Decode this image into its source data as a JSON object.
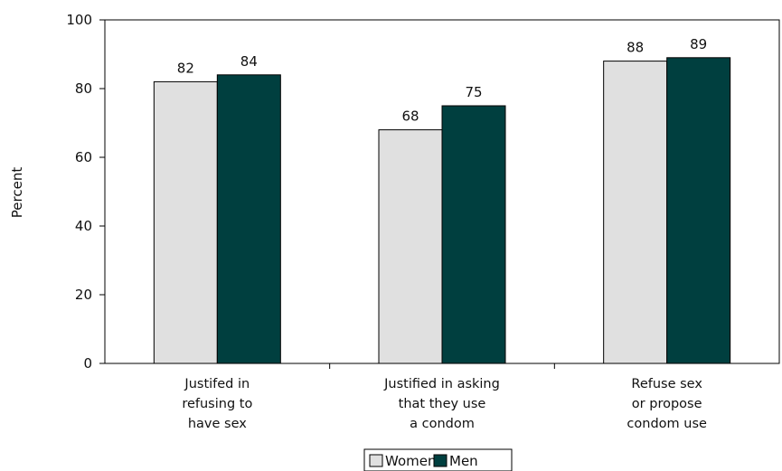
{
  "chart_data": {
    "type": "bar",
    "ylabel": "Percent",
    "ylim": [
      0,
      100
    ],
    "yticks": [
      0,
      20,
      40,
      60,
      80,
      100
    ],
    "categories": [
      [
        "Justifed in",
        "refusing to",
        "have sex"
      ],
      [
        "Justified in asking",
        "that they use",
        "a condom"
      ],
      [
        "Refuse sex",
        "or propose",
        "condom use"
      ]
    ],
    "series": [
      {
        "name": "Women",
        "color": "#e0e0e0",
        "values": [
          82,
          68,
          88
        ]
      },
      {
        "name": "Men",
        "color": "#003f3f",
        "values": [
          84,
          75,
          89
        ]
      }
    ],
    "data_labels": true,
    "grid": false,
    "legend_position": "bottom-center"
  }
}
